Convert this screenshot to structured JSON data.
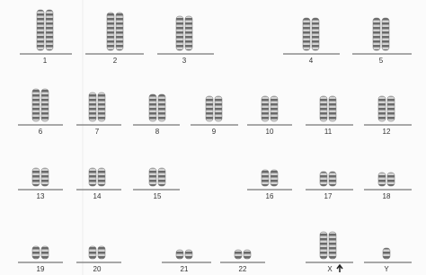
{
  "chromosomes": [
    {
      "label": "1"
    },
    {
      "label": "2"
    },
    {
      "label": "3"
    },
    {
      "label": "4"
    },
    {
      "label": "5"
    },
    {
      "label": "6"
    },
    {
      "label": "7"
    },
    {
      "label": "8"
    },
    {
      "label": "9"
    },
    {
      "label": "10"
    },
    {
      "label": "11"
    },
    {
      "label": "12"
    },
    {
      "label": "13"
    },
    {
      "label": "14"
    },
    {
      "label": "15"
    },
    {
      "label": "16"
    },
    {
      "label": "17"
    },
    {
      "label": "18"
    },
    {
      "label": "19"
    },
    {
      "label": "20"
    },
    {
      "label": "21"
    },
    {
      "label": "22"
    },
    {
      "label": "X"
    },
    {
      "label": "Y"
    }
  ]
}
